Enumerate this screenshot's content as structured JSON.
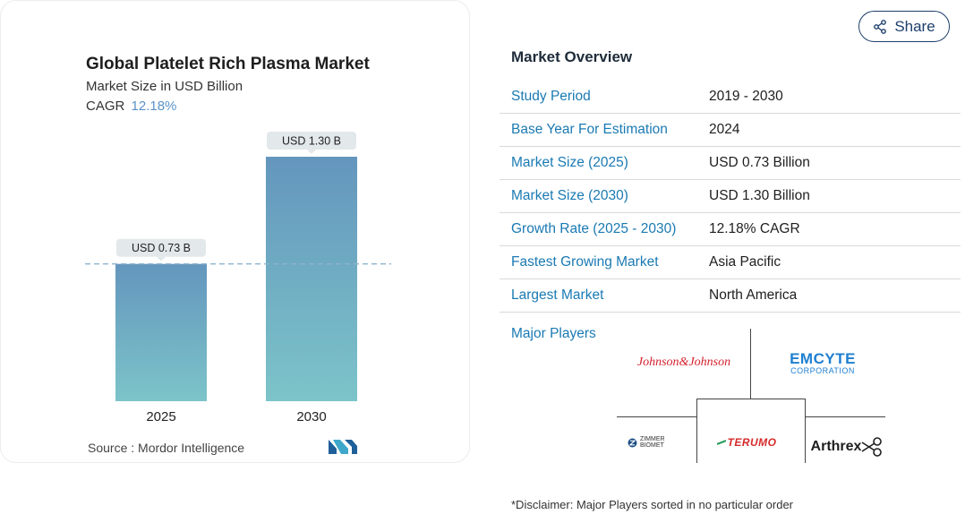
{
  "chart_data": {
    "type": "bar",
    "title": "Global Platelet Rich Plasma Market",
    "subtitle": "Market Size in USD Billion",
    "cagr_label": "CAGR",
    "cagr_value": "12.18%",
    "categories": [
      "2025",
      "2030"
    ],
    "values": [
      0.73,
      1.3
    ],
    "data_labels": [
      "USD 0.73 B",
      "USD 1.30 B"
    ],
    "ylim": [
      0,
      1.3
    ],
    "grid": false,
    "reference_line": "dashed at 2025 value",
    "colors": {
      "bar_top": "#6496bd",
      "bar_bottom": "#7cc4c9",
      "label_bg": "#e3e8ea",
      "ref_line": "#8fb3cc"
    }
  },
  "source": {
    "label": "Source :",
    "value": "Mordor Intelligence"
  },
  "share_label": "Share",
  "overview": {
    "title": "Market Overview",
    "rows": [
      {
        "key": "Study Period",
        "value": "2019 - 2030"
      },
      {
        "key": "Base Year For Estimation",
        "value": "2024"
      },
      {
        "key": "Market Size (2025)",
        "value": "USD 0.73 Billion"
      },
      {
        "key": "Market Size (2030)",
        "value": "USD 1.30 Billion"
      },
      {
        "key": "Growth Rate (2025 - 2030)",
        "value": "12.18% CAGR"
      },
      {
        "key": "Fastest Growing Market",
        "value": "Asia Pacific"
      },
      {
        "key": "Largest Market",
        "value": "North America"
      }
    ]
  },
  "players": {
    "label": "Major Players",
    "logos": {
      "jnj": "Johnson&Johnson",
      "emcyte_1": "EMCYTE",
      "emcyte_2": "CORPORATION",
      "zimmer": "ZIMMER BIOMET",
      "terumo": "TERUMO",
      "arthrex": "Arthrex"
    }
  },
  "disclaimer": "*Disclaimer: Major Players sorted in no particular order"
}
